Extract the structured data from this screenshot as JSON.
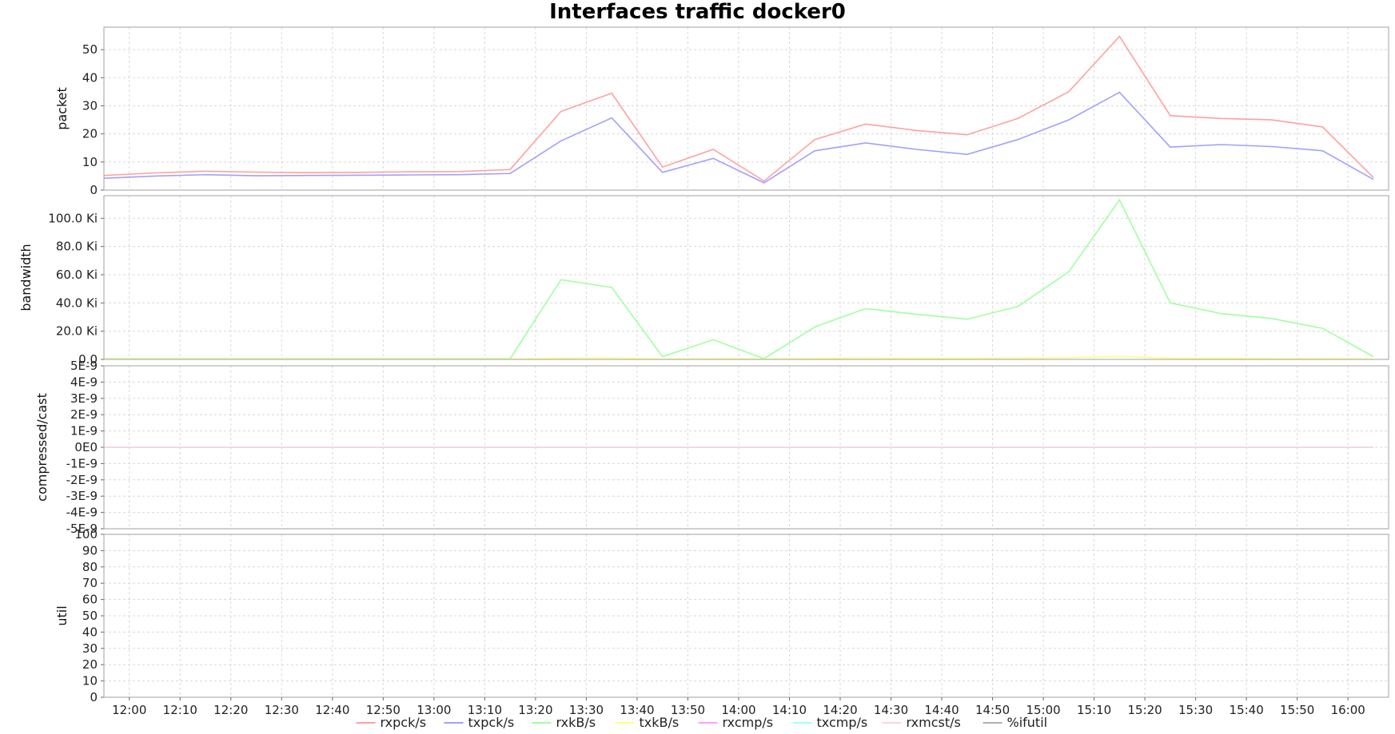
{
  "chart_data": {
    "type": "line",
    "title": "Interfaces traffic docker0",
    "x": [
      "11:55",
      "12:05",
      "12:15",
      "12:25",
      "12:35",
      "12:45",
      "12:55",
      "13:05",
      "13:15",
      "13:25",
      "13:35",
      "13:45",
      "13:55",
      "14:05",
      "14:15",
      "14:25",
      "14:35",
      "14:45",
      "14:55",
      "15:05",
      "15:15",
      "15:25",
      "15:35",
      "15:45",
      "15:55",
      "16:05"
    ],
    "x_ticks": [
      "12:00",
      "12:10",
      "12:20",
      "12:30",
      "12:40",
      "12:50",
      "13:00",
      "13:10",
      "13:20",
      "13:30",
      "13:40",
      "13:50",
      "14:00",
      "14:10",
      "14:20",
      "14:30",
      "14:40",
      "14:50",
      "15:00",
      "15:10",
      "15:20",
      "15:30",
      "15:40",
      "15:50",
      "16:00"
    ],
    "x_range_minutes": [
      "11:55",
      "16:08"
    ],
    "grid": true,
    "legend_placement": "bottom",
    "panels": [
      {
        "ylabel": "packet",
        "ylim": [
          0,
          58
        ],
        "ticks": [
          0,
          10,
          20,
          30,
          40,
          50
        ],
        "tick_labels": [
          "0",
          "10",
          "20",
          "30",
          "40",
          "50"
        ],
        "series": [
          {
            "name": "rxpck/s",
            "color": "#ffa0a0",
            "values": [
              5.2,
              6.1,
              6.7,
              6.4,
              6.2,
              6.3,
              6.5,
              6.6,
              7.3,
              28,
              34.5,
              8.2,
              14.5,
              3.2,
              18,
              23.5,
              21.2,
              19.7,
              25.5,
              35,
              54.7,
              26.5,
              25.5,
              25,
              22.5,
              4.5
            ]
          },
          {
            "name": "txpck/s",
            "color": "#a0a0ff",
            "values": [
              4.2,
              5,
              5.5,
              5.1,
              5.2,
              5.3,
              5.4,
              5.5,
              5.9,
              17.5,
              25.7,
              6.3,
              11.3,
              2.6,
              14,
              16.8,
              14.5,
              12.7,
              18,
              25,
              34.8,
              15.3,
              16.2,
              15.5,
              14,
              3.8
            ]
          }
        ]
      },
      {
        "ylabel": "bandwidth",
        "ylim": [
          0,
          116
        ],
        "ticks": [
          0,
          20,
          40,
          60,
          80,
          100
        ],
        "tick_labels": [
          "0.0",
          "20.0 Ki",
          "40.0 Ki",
          "60.0 Ki",
          "80.0 Ki",
          "100.0 Ki"
        ],
        "series": [
          {
            "name": "rxkB/s",
            "color": "#a0ffa0",
            "values": [
              0.5,
              0.5,
              0.5,
              0.5,
              0.5,
              0.5,
              0.5,
              0.5,
              0.5,
              56.5,
              51,
              2,
              14,
              0.5,
              23,
              36,
              32,
              28.5,
              37.5,
              62,
              113,
              40,
              32.5,
              29,
              22,
              2
            ]
          },
          {
            "name": "txkB/s",
            "color": "#ffff80",
            "values": [
              0.3,
              0.3,
              0.3,
              0.3,
              0.3,
              0.3,
              0.3,
              0.3,
              0.3,
              0.8,
              0.9,
              0.3,
              0.5,
              0.2,
              0.6,
              0.8,
              0.7,
              0.7,
              0.8,
              1.2,
              2.2,
              0.7,
              0.7,
              0.6,
              0.5,
              0.2
            ]
          }
        ]
      },
      {
        "ylabel": "compressed/cast",
        "ylim": [
          -5,
          5
        ],
        "ticks": [
          -5,
          -4,
          -3,
          -2,
          -1,
          0,
          1,
          2,
          3,
          4,
          5
        ],
        "tick_labels": [
          "-5E-9",
          "-4E-9",
          "-3E-9",
          "-2E-9",
          "-1E-9",
          "0E0",
          "1E-9",
          "2E-9",
          "3E-9",
          "4E-9",
          "5E-9"
        ],
        "series": [
          {
            "name": "rxcmp/s",
            "color": "#ffa0ff",
            "values": [
              0,
              0,
              0,
              0,
              0,
              0,
              0,
              0,
              0,
              0,
              0,
              0,
              0,
              0,
              0,
              0,
              0,
              0,
              0,
              0,
              0,
              0,
              0,
              0,
              0,
              0
            ]
          },
          {
            "name": "txcmp/s",
            "color": "#a0ffff",
            "values": [
              0,
              0,
              0,
              0,
              0,
              0,
              0,
              0,
              0,
              0,
              0,
              0,
              0,
              0,
              0,
              0,
              0,
              0,
              0,
              0,
              0,
              0,
              0,
              0,
              0,
              0
            ]
          },
          {
            "name": "rxmcst/s",
            "color": "#ffd0e0",
            "values": [
              0,
              0,
              0,
              0,
              0,
              0,
              0,
              0,
              0,
              0,
              0,
              0,
              0,
              0,
              0,
              0,
              0,
              0,
              0,
              0,
              0,
              0,
              0,
              0,
              0,
              0
            ]
          }
        ]
      },
      {
        "ylabel": "util",
        "ylim": [
          0,
          100
        ],
        "ticks": [
          0,
          10,
          20,
          30,
          40,
          50,
          60,
          70,
          80,
          90,
          100
        ],
        "tick_labels": [
          "0",
          "10",
          "20",
          "30",
          "40",
          "50",
          "60",
          "70",
          "80",
          "90",
          "100"
        ],
        "series": [
          {
            "name": "%ifutil",
            "color": "#b0b0b0",
            "values": []
          }
        ]
      }
    ],
    "legend": [
      {
        "name": "rxpck/s",
        "color": "#ffa0a0"
      },
      {
        "name": "txpck/s",
        "color": "#a0a0ff"
      },
      {
        "name": "rxkB/s",
        "color": "#a0ffa0"
      },
      {
        "name": "txkB/s",
        "color": "#ffff80"
      },
      {
        "name": "rxcmp/s",
        "color": "#ffa0ff"
      },
      {
        "name": "txcmp/s",
        "color": "#a0ffff"
      },
      {
        "name": "rxmcst/s",
        "color": "#ffd0e0"
      },
      {
        "name": "%ifutil",
        "color": "#b0b0b0"
      }
    ]
  }
}
